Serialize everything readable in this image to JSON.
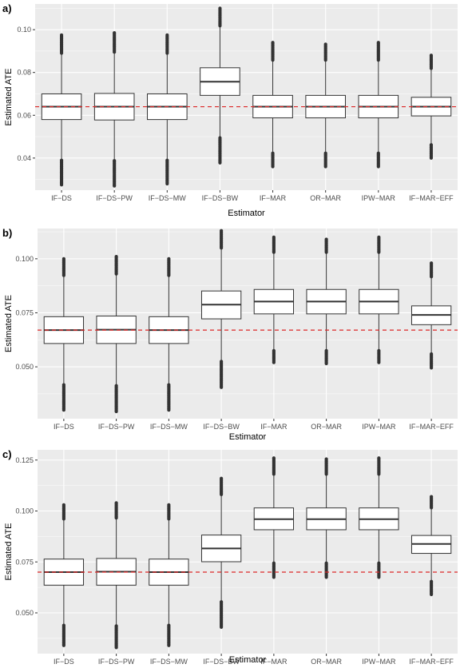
{
  "chart_data": [
    {
      "type": "boxplot",
      "panel_label": "a)",
      "xlabel": "Estimator",
      "ylabel": "Estimated ATE",
      "ylim": [
        0.025,
        0.112
      ],
      "yticks": [
        0.04,
        0.06,
        0.08,
        0.1
      ],
      "ytick_labels": [
        "0.04",
        "0.06",
        "0.08",
        "0.10"
      ],
      "reference_line": 0.064,
      "reference_color": "#DC2626",
      "grid": true,
      "categories": [
        "IF−DS",
        "IF−DS−PW",
        "IF−DS−MW",
        "IF−DS−BW",
        "IF−MAR",
        "OR−MAR",
        "IPW−MAR",
        "IF−MAR−EFF"
      ],
      "boxes": [
        {
          "q1": 0.058,
          "median": 0.064,
          "q3": 0.07,
          "whisker_low": 0.0395,
          "whisker_high": 0.0885,
          "out_low_min": 0.0275,
          "out_high_max": 0.0975
        },
        {
          "q1": 0.0578,
          "median": 0.064,
          "q3": 0.0702,
          "whisker_low": 0.0393,
          "whisker_high": 0.089,
          "out_low_min": 0.027,
          "out_high_max": 0.0985
        },
        {
          "q1": 0.058,
          "median": 0.064,
          "q3": 0.07,
          "whisker_low": 0.0395,
          "whisker_high": 0.0885,
          "out_low_min": 0.028,
          "out_high_max": 0.0975
        },
        {
          "q1": 0.0693,
          "median": 0.0757,
          "q3": 0.0822,
          "whisker_low": 0.05,
          "whisker_high": 0.1013,
          "out_low_min": 0.0378,
          "out_high_max": 0.11
        },
        {
          "q1": 0.0588,
          "median": 0.064,
          "q3": 0.0693,
          "whisker_low": 0.0428,
          "whisker_high": 0.0853,
          "out_low_min": 0.036,
          "out_high_max": 0.094
        },
        {
          "q1": 0.0588,
          "median": 0.064,
          "q3": 0.0693,
          "whisker_low": 0.0428,
          "whisker_high": 0.0853,
          "out_low_min": 0.036,
          "out_high_max": 0.0932
        },
        {
          "q1": 0.0588,
          "median": 0.064,
          "q3": 0.0693,
          "whisker_low": 0.0428,
          "whisker_high": 0.0853,
          "out_low_min": 0.036,
          "out_high_max": 0.094
        },
        {
          "q1": 0.0597,
          "median": 0.064,
          "q3": 0.0684,
          "whisker_low": 0.0467,
          "whisker_high": 0.0814,
          "out_low_min": 0.04,
          "out_high_max": 0.088
        }
      ]
    },
    {
      "type": "boxplot",
      "panel_label": "b)",
      "xlabel": "Estimator",
      "ylabel": "Estimated ATE",
      "ylim": [
        0.026,
        0.114
      ],
      "yticks": [
        0.05,
        0.075,
        0.1
      ],
      "ytick_labels": [
        "0.050",
        "0.075",
        "0.100"
      ],
      "reference_line": 0.067,
      "reference_color": "#DC2626",
      "grid": true,
      "categories": [
        "IF−DS",
        "IF−DS−PW",
        "IF−DS−MW",
        "IF−DS−BW",
        "IF−MAR",
        "OR−MAR",
        "IPW−MAR",
        "IF−MAR−EFF"
      ],
      "boxes": [
        {
          "q1": 0.0608,
          "median": 0.067,
          "q3": 0.0732,
          "whisker_low": 0.0422,
          "whisker_high": 0.0918,
          "out_low_min": 0.03,
          "out_high_max": 0.1
        },
        {
          "q1": 0.0608,
          "median": 0.0672,
          "q3": 0.0735,
          "whisker_low": 0.0418,
          "whisker_high": 0.0925,
          "out_low_min": 0.0293,
          "out_high_max": 0.101
        },
        {
          "q1": 0.0608,
          "median": 0.067,
          "q3": 0.0732,
          "whisker_low": 0.0422,
          "whisker_high": 0.0918,
          "out_low_min": 0.03,
          "out_high_max": 0.1
        },
        {
          "q1": 0.0722,
          "median": 0.0788,
          "q3": 0.0851,
          "whisker_low": 0.053,
          "whisker_high": 0.1045,
          "out_low_min": 0.0405,
          "out_high_max": 0.113
        },
        {
          "q1": 0.0745,
          "median": 0.0802,
          "q3": 0.0858,
          "whisker_low": 0.058,
          "whisker_high": 0.1025,
          "out_low_min": 0.052,
          "out_high_max": 0.11
        },
        {
          "q1": 0.0745,
          "median": 0.0802,
          "q3": 0.0858,
          "whisker_low": 0.058,
          "whisker_high": 0.1025,
          "out_low_min": 0.0515,
          "out_high_max": 0.109
        },
        {
          "q1": 0.0745,
          "median": 0.0802,
          "q3": 0.0858,
          "whisker_low": 0.058,
          "whisker_high": 0.1025,
          "out_low_min": 0.052,
          "out_high_max": 0.11
        },
        {
          "q1": 0.0695,
          "median": 0.074,
          "q3": 0.0782,
          "whisker_low": 0.0565,
          "whisker_high": 0.0912,
          "out_low_min": 0.0495,
          "out_high_max": 0.098
        }
      ]
    },
    {
      "type": "boxplot",
      "panel_label": "c)",
      "xlabel": "Estimator",
      "ylabel": "Estimated ATE",
      "ylim": [
        0.03,
        0.13
      ],
      "yticks": [
        0.05,
        0.075,
        0.1,
        0.125
      ],
      "ytick_labels": [
        "0.050",
        "0.075",
        "0.100",
        "0.125"
      ],
      "reference_line": 0.07,
      "reference_color": "#DC2626",
      "grid": true,
      "categories": [
        "IF−DS",
        "IF−DS−PW",
        "IF−DS−MW",
        "IF−DS−BW",
        "IF−MAR",
        "OR−MAR",
        "IPW−MAR",
        "IF−MAR−EFF"
      ],
      "boxes": [
        {
          "q1": 0.0636,
          "median": 0.07,
          "q3": 0.0764,
          "whisker_low": 0.0445,
          "whisker_high": 0.0955,
          "out_low_min": 0.034,
          "out_high_max": 0.103
        },
        {
          "q1": 0.0636,
          "median": 0.0702,
          "q3": 0.0767,
          "whisker_low": 0.0442,
          "whisker_high": 0.096,
          "out_low_min": 0.033,
          "out_high_max": 0.104
        },
        {
          "q1": 0.0636,
          "median": 0.07,
          "q3": 0.0764,
          "whisker_low": 0.0445,
          "whisker_high": 0.0955,
          "out_low_min": 0.034,
          "out_high_max": 0.103
        },
        {
          "q1": 0.0751,
          "median": 0.0816,
          "q3": 0.0882,
          "whisker_low": 0.056,
          "whisker_high": 0.1075,
          "out_low_min": 0.043,
          "out_high_max": 0.116
        },
        {
          "q1": 0.0908,
          "median": 0.096,
          "q3": 0.1015,
          "whisker_low": 0.075,
          "whisker_high": 0.1175,
          "out_low_min": 0.0675,
          "out_high_max": 0.126
        },
        {
          "q1": 0.0908,
          "median": 0.096,
          "q3": 0.1015,
          "whisker_low": 0.075,
          "whisker_high": 0.1175,
          "out_low_min": 0.0675,
          "out_high_max": 0.1255
        },
        {
          "q1": 0.0908,
          "median": 0.096,
          "q3": 0.1015,
          "whisker_low": 0.075,
          "whisker_high": 0.1175,
          "out_low_min": 0.0675,
          "out_high_max": 0.126
        },
        {
          "q1": 0.0792,
          "median": 0.0838,
          "q3": 0.088,
          "whisker_low": 0.066,
          "whisker_high": 0.101,
          "out_low_min": 0.059,
          "out_high_max": 0.107
        }
      ]
    }
  ]
}
